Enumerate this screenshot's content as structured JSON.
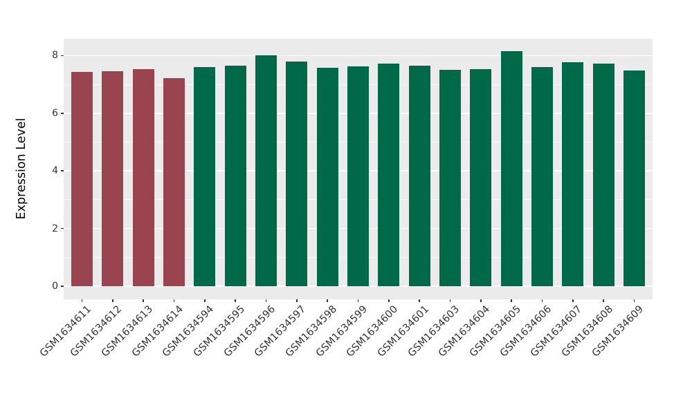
{
  "chart_data": {
    "type": "bar",
    "title": "",
    "xlabel": "",
    "ylabel": "Expression Level",
    "categories": [
      "GSM1634611",
      "GSM1634612",
      "GSM1634613",
      "GSM1634614",
      "GSM1634594",
      "GSM1634595",
      "GSM1634596",
      "GSM1634597",
      "GSM1634598",
      "GSM1634599",
      "GSM1634600",
      "GSM1634601",
      "GSM1634603",
      "GSM1634604",
      "GSM1634605",
      "GSM1634606",
      "GSM1634607",
      "GSM1634608",
      "GSM1634609"
    ],
    "values": [
      7.44,
      7.47,
      7.53,
      7.23,
      7.6,
      7.64,
      8.0,
      7.79,
      7.57,
      7.63,
      7.72,
      7.66,
      7.51,
      7.52,
      8.15,
      7.59,
      7.78,
      7.73,
      7.49
    ],
    "bar_colors": [
      "#9A4450",
      "#9A4450",
      "#9A4450",
      "#9A4450",
      "#006948",
      "#006948",
      "#006948",
      "#006948",
      "#006948",
      "#006948",
      "#006948",
      "#006948",
      "#006948",
      "#006948",
      "#006948",
      "#006948",
      "#006948",
      "#006948",
      "#006948"
    ],
    "palette": {
      "group_red": "#9A4450",
      "group_green": "#006948"
    },
    "y_ticks": [
      0,
      2,
      4,
      6,
      8
    ],
    "y_minor_ticks": [
      1,
      3,
      5,
      7
    ],
    "ylim": [
      0,
      8.6
    ],
    "bar_width_ratio": 0.7,
    "grid": "major+minor",
    "legend": "none",
    "panel_bg": "#EBEBEB",
    "grid_color": "#FFFFFF",
    "tick_color": "#333333",
    "tick_text_color": "#333333"
  }
}
